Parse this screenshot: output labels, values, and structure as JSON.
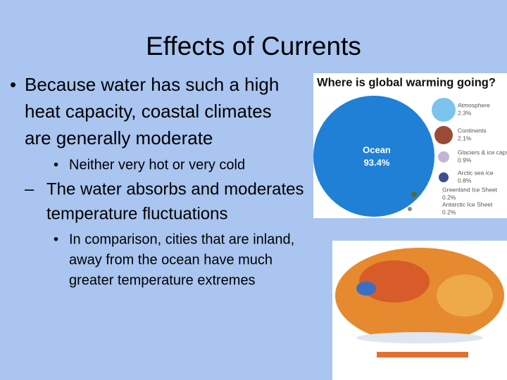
{
  "slide": {
    "title": "Effects of Currents",
    "bullets": [
      {
        "level": 1,
        "lines": [
          "Because water has such a high",
          "heat capacity, coastal climates",
          "are generally moderate"
        ]
      },
      {
        "level": 2,
        "lines": [
          "Neither very hot or very cold"
        ]
      },
      {
        "level": "dash",
        "lines": [
          "The water absorbs and moderates",
          "temperature fluctuations"
        ]
      },
      {
        "level": 2,
        "lines": [
          "In comparison, cities that are inland,",
          "away from the ocean have much",
          "greater temperature extremes"
        ]
      }
    ],
    "infographic": {
      "title": "Where is global warming going?",
      "ocean": {
        "name": "Ocean",
        "share": "93.4%"
      },
      "items": [
        {
          "name": "Atmosphere",
          "share": "2.3%"
        },
        {
          "name": "Continents",
          "share": "2.1%"
        },
        {
          "name": "Glaciers & ice caps",
          "share": "0.9%"
        },
        {
          "name": "Arctic sea ice",
          "share": "0.8%"
        },
        {
          "name": "Greenland Ice Sheet",
          "share": "0.2%"
        },
        {
          "name": "Antarctic Ice Sheet",
          "share": "0.2%"
        }
      ]
    }
  }
}
